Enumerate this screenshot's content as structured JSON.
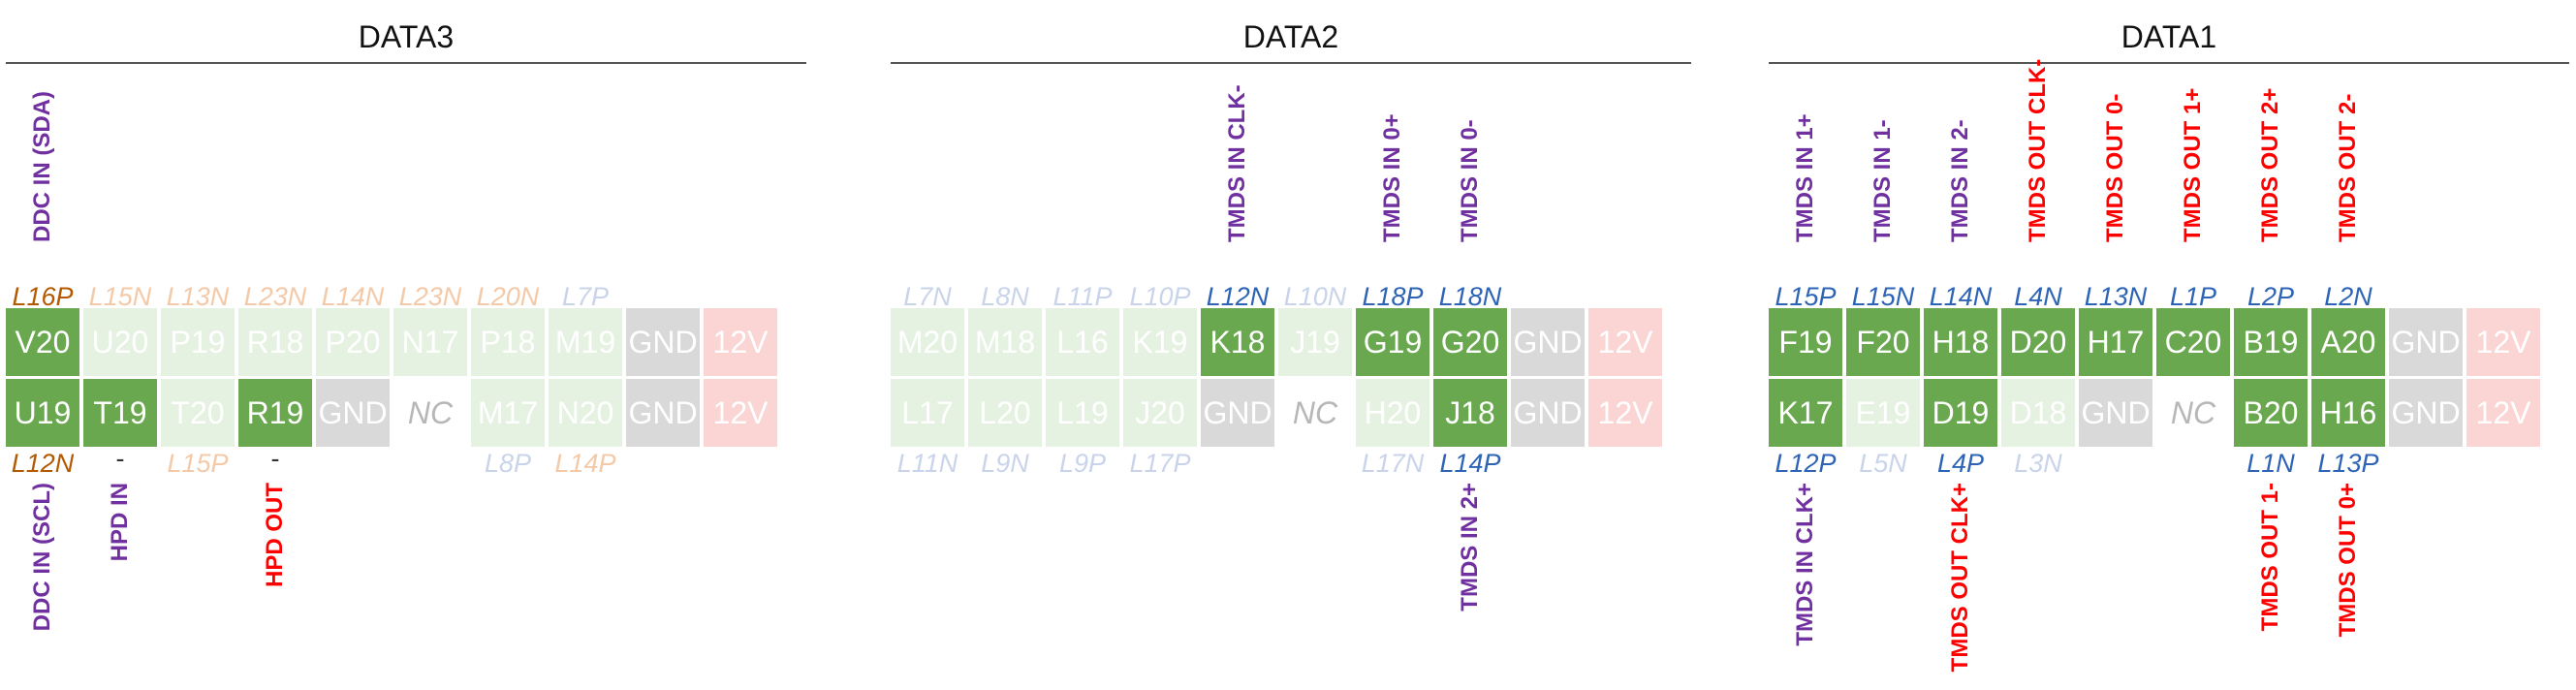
{
  "panels": [
    {
      "title": "DATA3",
      "top_labels": [
        {
          "text": "DDC IN (SDA)",
          "color": "purple",
          "col": 0
        }
      ],
      "top_banks": [
        {
          "text": "L16P",
          "style": "orange",
          "col": 0
        },
        {
          "text": "L15N",
          "style": "pale-orange",
          "col": 1
        },
        {
          "text": "L13N",
          "style": "pale-orange",
          "col": 2
        },
        {
          "text": "L23N",
          "style": "pale-orange",
          "col": 3
        },
        {
          "text": "L14N",
          "style": "pale-orange",
          "col": 4
        },
        {
          "text": "L23N",
          "style": "pale-orange",
          "col": 5
        },
        {
          "text": "L20N",
          "style": "pale-orange",
          "col": 6
        },
        {
          "text": "L7P",
          "style": "pale-blue",
          "col": 7
        }
      ],
      "row1": [
        {
          "text": "V20",
          "style": "active"
        },
        {
          "text": "U20",
          "style": "faint"
        },
        {
          "text": "P19",
          "style": "faint"
        },
        {
          "text": "R18",
          "style": "faint"
        },
        {
          "text": "P20",
          "style": "faint"
        },
        {
          "text": "N17",
          "style": "faint"
        },
        {
          "text": "P18",
          "style": "faint"
        },
        {
          "text": "M19",
          "style": "faint"
        },
        {
          "text": "GND",
          "style": "gnd"
        },
        {
          "text": "12V",
          "style": "pwr"
        }
      ],
      "row2": [
        {
          "text": "U19",
          "style": "active"
        },
        {
          "text": "T19",
          "style": "active"
        },
        {
          "text": "T20",
          "style": "faint"
        },
        {
          "text": "R19",
          "style": "active"
        },
        {
          "text": "GND",
          "style": "gnd"
        },
        {
          "text": "NC",
          "style": "nc"
        },
        {
          "text": "M17",
          "style": "faint"
        },
        {
          "text": "N20",
          "style": "faint"
        },
        {
          "text": "GND",
          "style": "gnd"
        },
        {
          "text": "12V",
          "style": "pwr"
        }
      ],
      "bottom_banks": [
        {
          "text": "L12N",
          "style": "orange",
          "col": 0
        },
        {
          "text": "-",
          "style": "dash",
          "col": 1
        },
        {
          "text": "L15P",
          "style": "pale-orange",
          "col": 2
        },
        {
          "text": "-",
          "style": "dash",
          "col": 3
        },
        {
          "text": "L8P",
          "style": "pale-blue",
          "col": 6
        },
        {
          "text": "L14P",
          "style": "pale-orange",
          "col": 7
        }
      ],
      "bottom_labels": [
        {
          "text": "DDC IN (SCL)",
          "color": "purple",
          "col": 0
        },
        {
          "text": "HPD IN",
          "color": "purple",
          "col": 1
        },
        {
          "text": "HPD OUT",
          "color": "red",
          "col": 3
        }
      ]
    },
    {
      "title": "DATA2",
      "top_labels": [
        {
          "text": "TMDS IN CLK-",
          "color": "purple",
          "col": 4
        },
        {
          "text": "TMDS IN 0+",
          "color": "purple",
          "col": 6
        },
        {
          "text": "TMDS IN 0-",
          "color": "purple",
          "col": 7
        }
      ],
      "top_banks": [
        {
          "text": "L7N",
          "style": "pale-blue",
          "col": 0
        },
        {
          "text": "L8N",
          "style": "pale-blue",
          "col": 1
        },
        {
          "text": "L11P",
          "style": "pale-blue",
          "col": 2
        },
        {
          "text": "L10P",
          "style": "pale-blue",
          "col": 3
        },
        {
          "text": "L12N",
          "style": "blue",
          "col": 4
        },
        {
          "text": "L10N",
          "style": "pale-blue",
          "col": 5
        },
        {
          "text": "L18P",
          "style": "blue",
          "col": 6
        },
        {
          "text": "L18N",
          "style": "blue",
          "col": 7
        }
      ],
      "row1": [
        {
          "text": "M20",
          "style": "faint"
        },
        {
          "text": "M18",
          "style": "faint"
        },
        {
          "text": "L16",
          "style": "faint"
        },
        {
          "text": "K19",
          "style": "faint"
        },
        {
          "text": "K18",
          "style": "active"
        },
        {
          "text": "J19",
          "style": "faint"
        },
        {
          "text": "G19",
          "style": "active"
        },
        {
          "text": "G20",
          "style": "active"
        },
        {
          "text": "GND",
          "style": "gnd"
        },
        {
          "text": "12V",
          "style": "pwr"
        }
      ],
      "row2": [
        {
          "text": "L17",
          "style": "faint"
        },
        {
          "text": "L20",
          "style": "faint"
        },
        {
          "text": "L19",
          "style": "faint"
        },
        {
          "text": "J20",
          "style": "faint"
        },
        {
          "text": "GND",
          "style": "gnd"
        },
        {
          "text": "NC",
          "style": "nc"
        },
        {
          "text": "H20",
          "style": "faint"
        },
        {
          "text": "J18",
          "style": "active"
        },
        {
          "text": "GND",
          "style": "gnd"
        },
        {
          "text": "12V",
          "style": "pwr"
        }
      ],
      "bottom_banks": [
        {
          "text": "L11N",
          "style": "pale-blue",
          "col": 0
        },
        {
          "text": "L9N",
          "style": "pale-blue",
          "col": 1
        },
        {
          "text": "L9P",
          "style": "pale-blue",
          "col": 2
        },
        {
          "text": "L17P",
          "style": "pale-blue",
          "col": 3
        },
        {
          "text": "L17N",
          "style": "pale-blue",
          "col": 6
        },
        {
          "text": "L14P",
          "style": "blue",
          "col": 7
        }
      ],
      "bottom_labels": [
        {
          "text": "TMDS IN 2+",
          "color": "purple",
          "col": 7
        }
      ]
    },
    {
      "title": "DATA1",
      "top_labels": [
        {
          "text": "TMDS IN 1+",
          "color": "purple",
          "col": 0
        },
        {
          "text": "TMDS IN 1-",
          "color": "purple",
          "col": 1
        },
        {
          "text": "TMDS IN 2-",
          "color": "purple",
          "col": 2
        },
        {
          "text": "TMDS OUT CLK-",
          "color": "red",
          "col": 3
        },
        {
          "text": "TMDS OUT 0-",
          "color": "red",
          "col": 4
        },
        {
          "text": "TMDS OUT 1+",
          "color": "red",
          "col": 5
        },
        {
          "text": "TMDS OUT 2+",
          "color": "red",
          "col": 6
        },
        {
          "text": "TMDS OUT 2-",
          "color": "red",
          "col": 7
        }
      ],
      "top_banks": [
        {
          "text": "L15P",
          "style": "blue",
          "col": 0
        },
        {
          "text": "L15N",
          "style": "blue",
          "col": 1
        },
        {
          "text": "L14N",
          "style": "blue",
          "col": 2
        },
        {
          "text": "L4N",
          "style": "blue",
          "col": 3
        },
        {
          "text": "L13N",
          "style": "blue",
          "col": 4
        },
        {
          "text": "L1P",
          "style": "blue",
          "col": 5
        },
        {
          "text": "L2P",
          "style": "blue",
          "col": 6
        },
        {
          "text": "L2N",
          "style": "blue",
          "col": 7
        }
      ],
      "row1": [
        {
          "text": "F19",
          "style": "active"
        },
        {
          "text": "F20",
          "style": "active"
        },
        {
          "text": "H18",
          "style": "active"
        },
        {
          "text": "D20",
          "style": "active"
        },
        {
          "text": "H17",
          "style": "active"
        },
        {
          "text": "C20",
          "style": "active"
        },
        {
          "text": "B19",
          "style": "active"
        },
        {
          "text": "A20",
          "style": "active"
        },
        {
          "text": "GND",
          "style": "gnd"
        },
        {
          "text": "12V",
          "style": "pwr"
        }
      ],
      "row2": [
        {
          "text": "K17",
          "style": "active"
        },
        {
          "text": "E19",
          "style": "faint"
        },
        {
          "text": "D19",
          "style": "active"
        },
        {
          "text": "D18",
          "style": "faint"
        },
        {
          "text": "GND",
          "style": "gnd"
        },
        {
          "text": "NC",
          "style": "nc"
        },
        {
          "text": "B20",
          "style": "active"
        },
        {
          "text": "H16",
          "style": "active"
        },
        {
          "text": "GND",
          "style": "gnd"
        },
        {
          "text": "12V",
          "style": "pwr"
        }
      ],
      "bottom_banks": [
        {
          "text": "L12P",
          "style": "blue",
          "col": 0
        },
        {
          "text": "L5N",
          "style": "pale-blue",
          "col": 1
        },
        {
          "text": "L4P",
          "style": "blue",
          "col": 2
        },
        {
          "text": "L3N",
          "style": "pale-blue",
          "col": 3
        },
        {
          "text": "L1N",
          "style": "blue",
          "col": 6
        },
        {
          "text": "L13P",
          "style": "blue",
          "col": 7
        }
      ],
      "bottom_labels": [
        {
          "text": "TMDS IN CLK+",
          "color": "purple",
          "col": 0
        },
        {
          "text": "TMDS OUT CLK+",
          "color": "red",
          "col": 2
        },
        {
          "text": "TMDS OUT 1-",
          "color": "red",
          "col": 6
        },
        {
          "text": "TMDS OUT 0+",
          "color": "red",
          "col": 7
        }
      ]
    }
  ]
}
